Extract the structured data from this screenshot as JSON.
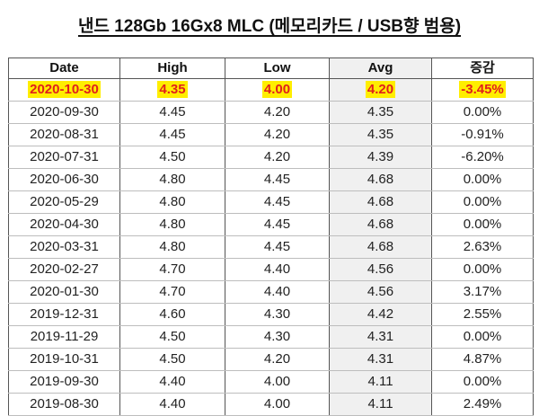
{
  "title": "낸드 128Gb 16Gx8 MLC (메모리카드 / USB향 범용)",
  "columns": [
    "Date",
    "High",
    "Low",
    "Avg",
    "증감"
  ],
  "colors": {
    "highlight": "#ffee00",
    "latest_text": "#e0201c",
    "avg_column_bg": "#f0f0f0"
  },
  "rows": [
    {
      "date": "2020-10-30",
      "high": "4.35",
      "low": "4.00",
      "avg": "4.20",
      "change": "-3.45%"
    },
    {
      "date": "2020-09-30",
      "high": "4.45",
      "low": "4.20",
      "avg": "4.35",
      "change": "0.00%"
    },
    {
      "date": "2020-08-31",
      "high": "4.45",
      "low": "4.20",
      "avg": "4.35",
      "change": "-0.91%"
    },
    {
      "date": "2020-07-31",
      "high": "4.50",
      "low": "4.20",
      "avg": "4.39",
      "change": "-6.20%"
    },
    {
      "date": "2020-06-30",
      "high": "4.80",
      "low": "4.45",
      "avg": "4.68",
      "change": "0.00%"
    },
    {
      "date": "2020-05-29",
      "high": "4.80",
      "low": "4.45",
      "avg": "4.68",
      "change": "0.00%"
    },
    {
      "date": "2020-04-30",
      "high": "4.80",
      "low": "4.45",
      "avg": "4.68",
      "change": "0.00%"
    },
    {
      "date": "2020-03-31",
      "high": "4.80",
      "low": "4.45",
      "avg": "4.68",
      "change": "2.63%"
    },
    {
      "date": "2020-02-27",
      "high": "4.70",
      "low": "4.40",
      "avg": "4.56",
      "change": "0.00%"
    },
    {
      "date": "2020-01-30",
      "high": "4.70",
      "low": "4.40",
      "avg": "4.56",
      "change": "3.17%"
    },
    {
      "date": "2019-12-31",
      "high": "4.60",
      "low": "4.30",
      "avg": "4.42",
      "change": "2.55%"
    },
    {
      "date": "2019-11-29",
      "high": "4.50",
      "low": "4.30",
      "avg": "4.31",
      "change": "0.00%"
    },
    {
      "date": "2019-10-31",
      "high": "4.50",
      "low": "4.20",
      "avg": "4.31",
      "change": "4.87%"
    },
    {
      "date": "2019-09-30",
      "high": "4.40",
      "low": "4.00",
      "avg": "4.11",
      "change": "0.00%"
    },
    {
      "date": "2019-08-30",
      "high": "4.40",
      "low": "4.00",
      "avg": "4.11",
      "change": "2.49%"
    }
  ]
}
